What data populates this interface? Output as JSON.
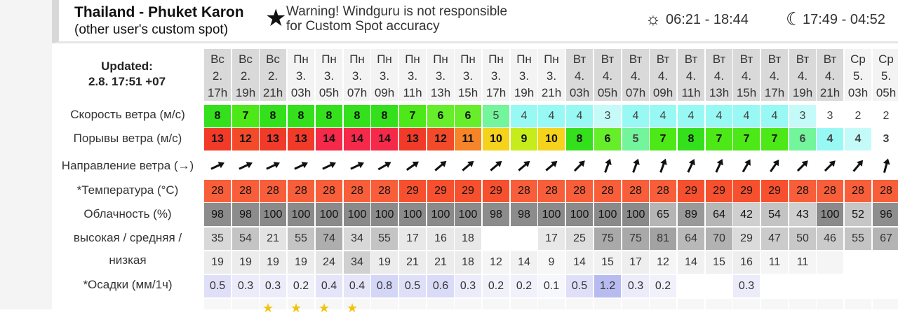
{
  "header": {
    "title": "Thailand - Phuket Karon",
    "subtitle": "(other user's custom spot)",
    "warning_line1": "Warning! Windguru is not responsible",
    "warning_line2": "for Custom Spot accuracy",
    "sun_times": "06:21 - 18:44",
    "moon_times": "17:49 - 04:52",
    "icons": {
      "warning": "star-icon",
      "sun": "sun-icon",
      "moon": "moon-icon"
    }
  },
  "updated": {
    "label": "Updated:",
    "value": "2.8. 17:51 +07"
  },
  "labels": {
    "wind_speed": "Скорость ветра (м/с)",
    "gusts": "Порывы ветра (м/с)",
    "direction": "Направление ветра (→)",
    "temperature": "*Температура (°C)",
    "cloud": "Облачность (%)",
    "cloud_hml_1": "высокая / средняя /",
    "cloud_hml_2": "низкая",
    "rain": "*Осадки (мм/1ч)"
  },
  "forecast": [
    {
      "day": "Вс",
      "date": "2.",
      "hour": "17h",
      "wspd": "8",
      "wspd_bg": "#33e01b",
      "wspd_fg": "#111111",
      "gust": "13",
      "gust_bg": "#f23a29",
      "gust_fg": "#111111",
      "dir": 245,
      "temp": "28",
      "temp_bg": "#f85e3a",
      "cloud": "98",
      "cloud_bg": "#8c8c8c",
      "ch": "35",
      "ch_bg": "#d8d8d8",
      "cm": "19",
      "cm_bg": "#ececec",
      "rain": "0.5",
      "rain_bg": "#dfe0f8",
      "bold": true
    },
    {
      "day": "Вс",
      "date": "2.",
      "hour": "19h",
      "wspd": "7",
      "wspd_bg": "#4de817",
      "wspd_fg": "#111111",
      "gust": "12",
      "gust_bg": "#f34a29",
      "gust_fg": "#111111",
      "dir": 245,
      "temp": "28",
      "temp_bg": "#f85e3a",
      "cloud": "98",
      "cloud_bg": "#8c8c8c",
      "ch": "54",
      "ch_bg": "#c4c4c4",
      "cm": "19",
      "cm_bg": "#ececec",
      "rain": "0.3",
      "rain_bg": "#ebebfa",
      "bold": true
    },
    {
      "day": "Вс",
      "date": "2.",
      "hour": "21h",
      "wspd": "8",
      "wspd_bg": "#33e01b",
      "wspd_fg": "#111111",
      "gust": "13",
      "gust_bg": "#f23a29",
      "gust_fg": "#111111",
      "dir": 245,
      "temp": "28",
      "temp_bg": "#f85e3a",
      "cloud": "100",
      "cloud_bg": "#8a8a8a",
      "ch": "21",
      "ch_bg": "#e3e3e3",
      "cm": "19",
      "cm_bg": "#ececec",
      "rain": "0.3",
      "rain_bg": "#ebebfa",
      "bold": true
    },
    {
      "day": "Пн",
      "date": "3.",
      "hour": "03h",
      "wspd": "8",
      "wspd_bg": "#33e01b",
      "wspd_fg": "#111111",
      "gust": "13",
      "gust_bg": "#f23a29",
      "gust_fg": "#111111",
      "dir": 245,
      "temp": "28",
      "temp_bg": "#f85e3a",
      "cloud": "100",
      "cloud_bg": "#8a8a8a",
      "ch": "55",
      "ch_bg": "#c4c4c4",
      "cm": "19",
      "cm_bg": "#ececec",
      "rain": "0.2",
      "rain_bg": "#f1f1fb",
      "bold": true
    },
    {
      "day": "Пн",
      "date": "3.",
      "hour": "05h",
      "wspd": "8",
      "wspd_bg": "#33e01b",
      "wspd_fg": "#111111",
      "gust": "14",
      "gust_bg": "#f5294a",
      "gust_fg": "#111111",
      "dir": 245,
      "temp": "28",
      "temp_bg": "#f85e3a",
      "cloud": "100",
      "cloud_bg": "#8a8a8a",
      "ch": "74",
      "ch_bg": "#aeaeae",
      "cm": "24",
      "cm_bg": "#e4e4e4",
      "rain": "0.4",
      "rain_bg": "#e5e5f9",
      "bold": true
    },
    {
      "day": "Пн",
      "date": "3.",
      "hour": "07h",
      "wspd": "8",
      "wspd_bg": "#33e01b",
      "wspd_fg": "#111111",
      "gust": "14",
      "gust_bg": "#f5294a",
      "gust_fg": "#111111",
      "dir": 245,
      "temp": "28",
      "temp_bg": "#f85e3a",
      "cloud": "100",
      "cloud_bg": "#8a8a8a",
      "ch": "34",
      "ch_bg": "#d8d8d8",
      "cm": "34",
      "cm_bg": "#d0d0d0",
      "rain": "0.4",
      "rain_bg": "#e5e5f9",
      "bold": true
    },
    {
      "day": "Пн",
      "date": "3.",
      "hour": "09h",
      "wspd": "8",
      "wspd_bg": "#33e01b",
      "wspd_fg": "#111111",
      "gust": "14",
      "gust_bg": "#f5294a",
      "gust_fg": "#111111",
      "dir": 240,
      "temp": "28",
      "temp_bg": "#f85e3a",
      "cloud": "100",
      "cloud_bg": "#8a8a8a",
      "ch": "55",
      "ch_bg": "#c4c4c4",
      "cm": "19",
      "cm_bg": "#ececec",
      "rain": "0.8",
      "rain_bg": "#d4d6f6",
      "bold": true
    },
    {
      "day": "Пн",
      "date": "3.",
      "hour": "11h",
      "wspd": "7",
      "wspd_bg": "#4de817",
      "wspd_fg": "#111111",
      "gust": "13",
      "gust_bg": "#f23a29",
      "gust_fg": "#111111",
      "dir": 235,
      "temp": "29",
      "temp_bg": "#f6502e",
      "cloud": "100",
      "cloud_bg": "#8a8a8a",
      "ch": "17",
      "ch_bg": "#e8e8e8",
      "cm": "21",
      "cm_bg": "#ececec",
      "rain": "0.5",
      "rain_bg": "#dfe0f8",
      "bold": true
    },
    {
      "day": "Пн",
      "date": "3.",
      "hour": "13h",
      "wspd": "6",
      "wspd_bg": "#66ee2a",
      "wspd_fg": "#111111",
      "gust": "12",
      "gust_bg": "#f34a29",
      "gust_fg": "#111111",
      "dir": 230,
      "temp": "29",
      "temp_bg": "#f6502e",
      "cloud": "100",
      "cloud_bg": "#8a8a8a",
      "ch": "16",
      "ch_bg": "#e8e8e8",
      "cm": "21",
      "cm_bg": "#ececec",
      "rain": "0.6",
      "rain_bg": "#dadbf7",
      "bold": true
    },
    {
      "day": "Пн",
      "date": "3.",
      "hour": "15h",
      "wspd": "6",
      "wspd_bg": "#66ee2a",
      "wspd_fg": "#111111",
      "gust": "11",
      "gust_bg": "#f6852a",
      "gust_fg": "#111111",
      "dir": 230,
      "temp": "29",
      "temp_bg": "#f6502e",
      "cloud": "100",
      "cloud_bg": "#8a8a8a",
      "ch": "18",
      "ch_bg": "#e8e8e8",
      "cm": "18",
      "cm_bg": "#ececec",
      "rain": "0.3",
      "rain_bg": "#ebebfa",
      "bold": true
    },
    {
      "day": "Пн",
      "date": "3.",
      "hour": "17h",
      "wspd": "5",
      "wspd_bg": "#72f59b",
      "wspd_fg": "#444444",
      "gust": "10",
      "gust_bg": "#f5d21c",
      "gust_fg": "#111111",
      "dir": 230,
      "temp": "29",
      "temp_bg": "#f6502e",
      "cloud": "98",
      "cloud_bg": "#8c8c8c",
      "ch": "",
      "ch_bg": "#ffffff",
      "cm": "12",
      "cm_bg": "#f5f5f5",
      "rain": "0.2",
      "rain_bg": "#f1f1fb",
      "bold": false
    },
    {
      "day": "Пн",
      "date": "3.",
      "hour": "19h",
      "wspd": "4",
      "wspd_bg": "#98f9f4",
      "wspd_fg": "#444444",
      "gust": "9",
      "gust_bg": "#c6ec1c",
      "gust_fg": "#111111",
      "dir": 230,
      "temp": "28",
      "temp_bg": "#f85e3a",
      "cloud": "98",
      "cloud_bg": "#8c8c8c",
      "ch": "",
      "ch_bg": "#ffffff",
      "cm": "14",
      "cm_bg": "#f1f1f1",
      "rain": "0.2",
      "rain_bg": "#f1f1fb",
      "bold": false
    },
    {
      "day": "Пн",
      "date": "3.",
      "hour": "21h",
      "wspd": "4",
      "wspd_bg": "#98f9f4",
      "wspd_fg": "#444444",
      "gust": "10",
      "gust_bg": "#f5d21c",
      "gust_fg": "#111111",
      "dir": 230,
      "temp": "28",
      "temp_bg": "#f85e3a",
      "cloud": "100",
      "cloud_bg": "#8a8a8a",
      "ch": "17",
      "ch_bg": "#e8e8e8",
      "cm": "9",
      "cm_bg": "#f7f7f7",
      "rain": "0.1",
      "rain_bg": "#f6f6fd",
      "bold": false
    },
    {
      "day": "Вт",
      "date": "4.",
      "hour": "03h",
      "wspd": "4",
      "wspd_bg": "#98f9f4",
      "wspd_fg": "#444444",
      "gust": "8",
      "gust_bg": "#33e01b",
      "gust_fg": "#111111",
      "dir": 225,
      "temp": "28",
      "temp_bg": "#f85e3a",
      "cloud": "100",
      "cloud_bg": "#8a8a8a",
      "ch": "25",
      "ch_bg": "#dedede",
      "cm": "14",
      "cm_bg": "#f1f1f1",
      "rain": "0.5",
      "rain_bg": "#dfe0f8",
      "bold": false
    },
    {
      "day": "Вт",
      "date": "4.",
      "hour": "05h",
      "wspd": "3",
      "wspd_bg": "#c4fbf8",
      "wspd_fg": "#444444",
      "gust": "6",
      "gust_bg": "#66ee2a",
      "gust_fg": "#111111",
      "dir": 200,
      "temp": "28",
      "temp_bg": "#f85e3a",
      "cloud": "100",
      "cloud_bg": "#8a8a8a",
      "ch": "75",
      "ch_bg": "#a9a9a9",
      "cm": "15",
      "cm_bg": "#f1f1f1",
      "rain": "1.2",
      "rain_bg": "#b8bbf0",
      "bold": false
    },
    {
      "day": "Вт",
      "date": "4.",
      "hour": "07h",
      "wspd": "4",
      "wspd_bg": "#98f9f4",
      "wspd_fg": "#444444",
      "gust": "5",
      "gust_bg": "#72f59b",
      "gust_fg": "#444444",
      "dir": 200,
      "temp": "28",
      "temp_bg": "#f85e3a",
      "cloud": "100",
      "cloud_bg": "#8a8a8a",
      "ch": "75",
      "ch_bg": "#a9a9a9",
      "cm": "17",
      "cm_bg": "#eeeeee",
      "rain": "0.3",
      "rain_bg": "#ebebfa",
      "bold": false
    },
    {
      "day": "Вт",
      "date": "4.",
      "hour": "09h",
      "wspd": "4",
      "wspd_bg": "#98f9f4",
      "wspd_fg": "#444444",
      "gust": "7",
      "gust_bg": "#4de817",
      "gust_fg": "#111111",
      "dir": 200,
      "temp": "28",
      "temp_bg": "#f85e3a",
      "cloud": "65",
      "cloud_bg": "#b5b5b5",
      "ch": "81",
      "ch_bg": "#a2a2a2",
      "cm": "12",
      "cm_bg": "#f5f5f5",
      "rain": "0.2",
      "rain_bg": "#f1f1fb",
      "bold": false
    },
    {
      "day": "Вт",
      "date": "4.",
      "hour": "11h",
      "wspd": "4",
      "wspd_bg": "#98f9f4",
      "wspd_fg": "#444444",
      "gust": "8",
      "gust_bg": "#33e01b",
      "gust_fg": "#111111",
      "dir": 205,
      "temp": "29",
      "temp_bg": "#f6502e",
      "cloud": "89",
      "cloud_bg": "#999999",
      "ch": "64",
      "ch_bg": "#b9b9b9",
      "cm": "14",
      "cm_bg": "#f1f1f1",
      "rain": "",
      "rain_bg": "#ffffff",
      "bold": false
    },
    {
      "day": "Вт",
      "date": "4.",
      "hour": "13h",
      "wspd": "4",
      "wspd_bg": "#98f9f4",
      "wspd_fg": "#444444",
      "gust": "7",
      "gust_bg": "#4de817",
      "gust_fg": "#111111",
      "dir": 205,
      "temp": "29",
      "temp_bg": "#f6502e",
      "cloud": "64",
      "cloud_bg": "#b6b6b6",
      "ch": "70",
      "ch_bg": "#b2b2b2",
      "cm": "15",
      "cm_bg": "#f1f1f1",
      "rain": "",
      "rain_bg": "#ffffff",
      "bold": false
    },
    {
      "day": "Вт",
      "date": "4.",
      "hour": "15h",
      "wspd": "4",
      "wspd_bg": "#98f9f4",
      "wspd_fg": "#444444",
      "gust": "7",
      "gust_bg": "#4de817",
      "gust_fg": "#111111",
      "dir": 210,
      "temp": "29",
      "temp_bg": "#f6502e",
      "cloud": "42",
      "cloud_bg": "#cfcfcf",
      "ch": "29",
      "ch_bg": "#dbdbdb",
      "cm": "16",
      "cm_bg": "#eeeeee",
      "rain": "0.3",
      "rain_bg": "#ebebfa",
      "bold": false
    },
    {
      "day": "Вт",
      "date": "4.",
      "hour": "17h",
      "wspd": "4",
      "wspd_bg": "#98f9f4",
      "wspd_fg": "#444444",
      "gust": "7",
      "gust_bg": "#4de817",
      "gust_fg": "#111111",
      "dir": 215,
      "temp": "29",
      "temp_bg": "#f6502e",
      "cloud": "54",
      "cloud_bg": "#c3c3c3",
      "ch": "47",
      "ch_bg": "#cbcbcb",
      "cm": "11",
      "cm_bg": "#f5f5f5",
      "rain": "",
      "rain_bg": "#ffffff",
      "bold": false
    },
    {
      "day": "Вт",
      "date": "4.",
      "hour": "19h",
      "wspd": "3",
      "wspd_bg": "#c4fbf8",
      "wspd_fg": "#444444",
      "gust": "6",
      "gust_bg": "#72f59b",
      "gust_fg": "#444444",
      "dir": 225,
      "temp": "28",
      "temp_bg": "#f85e3a",
      "cloud": "43",
      "cloud_bg": "#cfcfcf",
      "ch": "50",
      "ch_bg": "#c8c8c8",
      "cm": "11",
      "cm_bg": "#f5f5f5",
      "rain": "",
      "rain_bg": "#ffffff",
      "bold": false
    },
    {
      "day": "Вт",
      "date": "4.",
      "hour": "21h",
      "wspd": "3",
      "wspd_bg": "#ffffff",
      "wspd_fg": "#444444",
      "gust": "4",
      "gust_bg": "#98f9f4",
      "gust_fg": "#444444",
      "dir": 225,
      "temp": "28",
      "temp_bg": "#f85e3a",
      "cloud": "100",
      "cloud_bg": "#8a8a8a",
      "ch": "46",
      "ch_bg": "#cbcbcb",
      "cm": "",
      "cm_bg": "#f5f5f5",
      "rain": "",
      "rain_bg": "#ffffff",
      "bold": false
    },
    {
      "day": "Ср",
      "date": "5.",
      "hour": "03h",
      "wspd": "2",
      "wspd_bg": "#ffffff",
      "wspd_fg": "#444444",
      "gust": "4",
      "gust_bg": "#c4fbf8",
      "gust_fg": "#444444",
      "dir": 220,
      "temp": "28",
      "temp_bg": "#f85e3a",
      "cloud": "52",
      "cloud_bg": "#c6c6c6",
      "ch": "55",
      "ch_bg": "#c4c4c4",
      "cm": "",
      "cm_bg": "#ffffff",
      "rain": "",
      "rain_bg": "#ffffff",
      "bold": false
    },
    {
      "day": "Ср",
      "date": "5.",
      "hour": "05h",
      "wspd": "2",
      "wspd_bg": "#ffffff",
      "wspd_fg": "#444444",
      "gust": "3",
      "gust_bg": "#ffffff",
      "gust_fg": "#444444",
      "dir": 195,
      "temp": "28",
      "temp_bg": "#f85e3a",
      "cloud": "96",
      "cloud_bg": "#8e8e8e",
      "ch": "67",
      "ch_bg": "#b4b4b4",
      "cm": "",
      "cm_bg": "#ffffff",
      "rain": "",
      "rain_bg": "#ffffff",
      "bold": false
    }
  ],
  "rating_stars": [
    "★",
    "★",
    "★",
    "★"
  ]
}
